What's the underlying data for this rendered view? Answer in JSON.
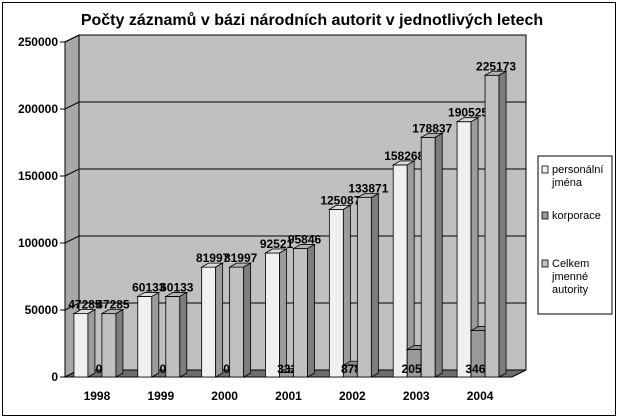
{
  "chart_data": {
    "type": "bar",
    "title": "Počty záznamů v bázi národních autorit v jednotlivých letech",
    "categories": [
      "1998",
      "1999",
      "2000",
      "2001",
      "2002",
      "2003",
      "2004"
    ],
    "series": [
      {
        "name": "personální jména",
        "values": [
          47285,
          60133,
          81997,
          92521,
          125087,
          158268,
          190525
        ],
        "color": "#f0f0f0"
      },
      {
        "name": "korporace",
        "values": [
          0,
          0,
          0,
          3325,
          8784,
          20569,
          34648
        ],
        "color": "#9a9a9a"
      },
      {
        "name": "Celkem jmenné autority",
        "values": [
          47285,
          60133,
          81997,
          95846,
          133871,
          178837,
          225173
        ],
        "color": "#c0c0c0"
      }
    ],
    "value_labels": [
      [
        "47285",
        "60133",
        "81997",
        "92521",
        "125087",
        "158268",
        "190525"
      ],
      [
        "0",
        "0",
        "0",
        "3325",
        "8784",
        "20569",
        "34648"
      ],
      [
        "47285",
        "60133",
        "81997",
        "95846",
        "133871",
        "178837",
        "225173"
      ]
    ],
    "ylim": [
      0,
      250000
    ],
    "yticks": [
      "0",
      "50000",
      "100000",
      "150000",
      "200000",
      "250000"
    ],
    "grid": true,
    "legend_position": "right",
    "plot_background": "#c0c0c0"
  }
}
